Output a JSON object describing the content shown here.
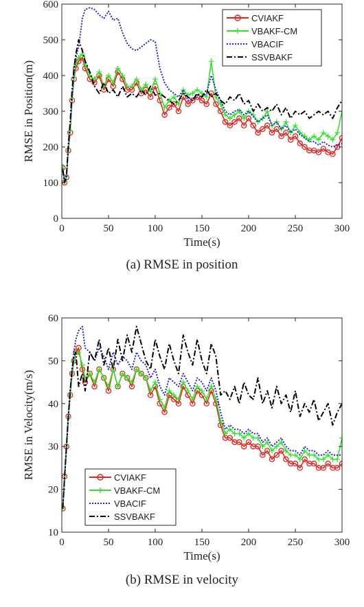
{
  "chart_data": [
    {
      "type": "line",
      "caption": "(a) RMSE in position",
      "xlabel": "Time(s)",
      "ylabel": "RMSE in Position(m)",
      "xlim": [
        0,
        300
      ],
      "ylim": [
        0,
        600
      ],
      "xticks": [
        "0",
        "50",
        "100",
        "150",
        "200",
        "250",
        "300"
      ],
      "yticks": [
        "0",
        "100",
        "200",
        "300",
        "400",
        "500",
        "600"
      ],
      "legend_position": "top-right",
      "grid": false,
      "x": [
        1,
        3,
        5,
        7,
        9,
        11,
        13,
        15,
        18,
        22,
        25,
        30,
        35,
        40,
        45,
        50,
        55,
        60,
        65,
        70,
        75,
        80,
        85,
        90,
        95,
        100,
        105,
        110,
        115,
        120,
        125,
        130,
        135,
        140,
        145,
        150,
        155,
        160,
        165,
        170,
        175,
        180,
        185,
        190,
        195,
        200,
        205,
        210,
        215,
        220,
        225,
        230,
        235,
        240,
        245,
        250,
        255,
        260,
        265,
        270,
        275,
        280,
        285,
        290,
        295,
        300
      ],
      "series": [
        {
          "name": "CVIAKF",
          "color": "#e8221c",
          "style": "solid",
          "marker": "circle",
          "values": [
            142,
            100,
            115,
            190,
            240,
            330,
            390,
            420,
            440,
            450,
            420,
            390,
            380,
            400,
            360,
            390,
            370,
            410,
            390,
            360,
            360,
            380,
            350,
            360,
            340,
            370,
            330,
            290,
            310,
            320,
            300,
            340,
            320,
            330,
            340,
            330,
            320,
            350,
            320,
            300,
            270,
            260,
            270,
            280,
            260,
            280,
            260,
            240,
            250,
            260,
            240,
            250,
            230,
            240,
            220,
            230,
            210,
            200,
            190,
            190,
            185,
            195,
            185,
            180,
            200,
            225
          ]
        },
        {
          "name": "VBAKF-CM",
          "color": "#2ee52a",
          "style": "solid",
          "marker": "plus",
          "values": [
            145,
            102,
            118,
            195,
            245,
            335,
            395,
            430,
            450,
            460,
            430,
            400,
            390,
            410,
            370,
            400,
            380,
            420,
            400,
            370,
            370,
            390,
            360,
            375,
            355,
            390,
            350,
            310,
            330,
            340,
            320,
            360,
            345,
            350,
            360,
            350,
            340,
            440,
            340,
            320,
            290,
            280,
            290,
            300,
            280,
            300,
            290,
            270,
            280,
            300,
            260,
            270,
            250,
            270,
            240,
            260,
            240,
            230,
            220,
            230,
            220,
            240,
            230,
            220,
            240,
            300
          ]
        },
        {
          "name": "VBACIF",
          "color": "#1f22e0",
          "style": "dotted",
          "marker": "none",
          "values": [
            140,
            105,
            120,
            200,
            260,
            350,
            410,
            450,
            480,
            560,
            585,
            590,
            585,
            570,
            560,
            580,
            555,
            560,
            520,
            490,
            475,
            470,
            480,
            490,
            500,
            495,
            420,
            380,
            360,
            350,
            340,
            360,
            330,
            335,
            345,
            340,
            350,
            400,
            360,
            330,
            300,
            290,
            300,
            305,
            290,
            300,
            285,
            270,
            280,
            290,
            260,
            270,
            250,
            260,
            240,
            250,
            235,
            225,
            215,
            215,
            205,
            215,
            205,
            200,
            205,
            210
          ]
        },
        {
          "name": "SSVBAKF",
          "color": "#000000",
          "style": "dashdot",
          "marker": "none",
          "values": [
            135,
            100,
            118,
            205,
            270,
            360,
            420,
            460,
            500,
            470,
            440,
            410,
            370,
            350,
            380,
            350,
            360,
            340,
            370,
            340,
            350,
            340,
            360,
            345,
            370,
            345,
            350,
            340,
            330,
            320,
            330,
            350,
            340,
            330,
            350,
            340,
            360,
            340,
            350,
            330,
            320,
            340,
            330,
            350,
            320,
            330,
            300,
            320,
            300,
            310,
            300,
            320,
            290,
            310,
            280,
            300,
            290,
            300,
            280,
            290,
            300,
            290,
            300,
            280,
            310,
            330
          ]
        }
      ]
    },
    {
      "type": "line",
      "caption": "(b) RMSE in velocity",
      "xlabel": "Time(s)",
      "ylabel": "RMSE in Velocity(m/s)",
      "xlim": [
        0,
        300
      ],
      "ylim": [
        10,
        60
      ],
      "xticks": [
        "0",
        "50",
        "100",
        "150",
        "200",
        "250",
        "300"
      ],
      "yticks": [
        "10",
        "20",
        "30",
        "40",
        "50",
        "60"
      ],
      "legend_position": "bottom-left",
      "grid": false,
      "x": [
        1,
        3,
        5,
        7,
        9,
        11,
        13,
        15,
        18,
        22,
        25,
        30,
        35,
        40,
        45,
        50,
        55,
        60,
        65,
        70,
        75,
        80,
        85,
        90,
        95,
        100,
        105,
        110,
        115,
        120,
        125,
        130,
        135,
        140,
        145,
        150,
        155,
        160,
        165,
        170,
        175,
        180,
        185,
        190,
        195,
        200,
        205,
        210,
        215,
        220,
        225,
        230,
        235,
        240,
        245,
        250,
        255,
        260,
        265,
        270,
        275,
        280,
        285,
        290,
        295,
        300
      ],
      "series": [
        {
          "name": "CVIAKF",
          "color": "#e8221c",
          "style": "solid",
          "marker": "circle",
          "values": [
            15.5,
            23,
            30,
            37,
            42,
            47,
            50,
            52,
            53,
            48,
            45,
            47,
            44,
            48,
            46,
            43,
            48,
            44,
            47,
            46,
            44,
            48,
            47,
            46,
            42,
            44,
            40,
            38,
            42,
            41,
            40,
            44,
            42,
            40,
            43,
            42,
            40,
            43,
            40,
            35,
            32,
            32,
            31,
            31,
            30,
            31,
            30,
            30,
            28,
            29,
            27,
            28,
            29,
            27,
            26,
            26,
            25,
            27,
            26,
            26,
            25,
            25,
            26,
            25,
            25,
            26
          ]
        },
        {
          "name": "VBAKF-CM",
          "color": "#2ee52a",
          "style": "solid",
          "marker": "plus",
          "values": [
            15.5,
            23,
            30,
            37,
            42,
            47,
            50,
            52,
            52,
            49,
            46,
            47,
            45,
            48,
            46,
            44,
            48,
            44,
            47,
            46,
            45,
            48,
            47,
            46,
            43,
            45,
            41,
            39,
            43,
            42,
            41,
            45,
            43,
            41,
            44,
            43,
            41,
            44,
            41,
            36,
            33,
            34,
            33,
            33,
            32,
            33,
            32,
            32,
            30,
            31,
            29,
            30,
            31,
            29,
            28,
            28,
            27,
            29,
            28,
            28,
            27,
            27,
            28,
            27,
            27,
            32
          ]
        },
        {
          "name": "VBACIF",
          "color": "#1f22e0",
          "style": "dotted",
          "marker": "none",
          "values": [
            15.5,
            23,
            30,
            37,
            43,
            48,
            52,
            55,
            57,
            58,
            53,
            52,
            50,
            53,
            51,
            48,
            52,
            49,
            51,
            50,
            48,
            52,
            50,
            49,
            46,
            48,
            44,
            42,
            46,
            45,
            44,
            47,
            45,
            43,
            46,
            45,
            43,
            46,
            43,
            38,
            34,
            35,
            34,
            34,
            33,
            34,
            33,
            33,
            31,
            32,
            30,
            31,
            32,
            30,
            29,
            29,
            28,
            30,
            29,
            29,
            28,
            28,
            29,
            28,
            28,
            28
          ]
        },
        {
          "name": "SSVBAKF",
          "color": "#000000",
          "style": "dashdot",
          "marker": "none",
          "values": [
            15.5,
            23,
            30,
            37,
            43,
            48,
            51,
            52,
            44,
            47,
            43,
            52,
            50,
            55,
            49,
            53,
            48,
            55,
            50,
            56,
            52,
            58,
            54,
            50,
            48,
            55,
            51,
            48,
            54,
            50,
            47,
            56,
            52,
            49,
            55,
            50,
            47,
            54,
            51,
            42,
            43,
            41,
            44,
            40,
            45,
            42,
            41,
            46,
            40,
            43,
            39,
            44,
            40,
            42,
            38,
            43,
            37,
            40,
            38,
            41,
            36,
            38,
            40,
            35,
            38,
            40
          ]
        }
      ]
    }
  ]
}
